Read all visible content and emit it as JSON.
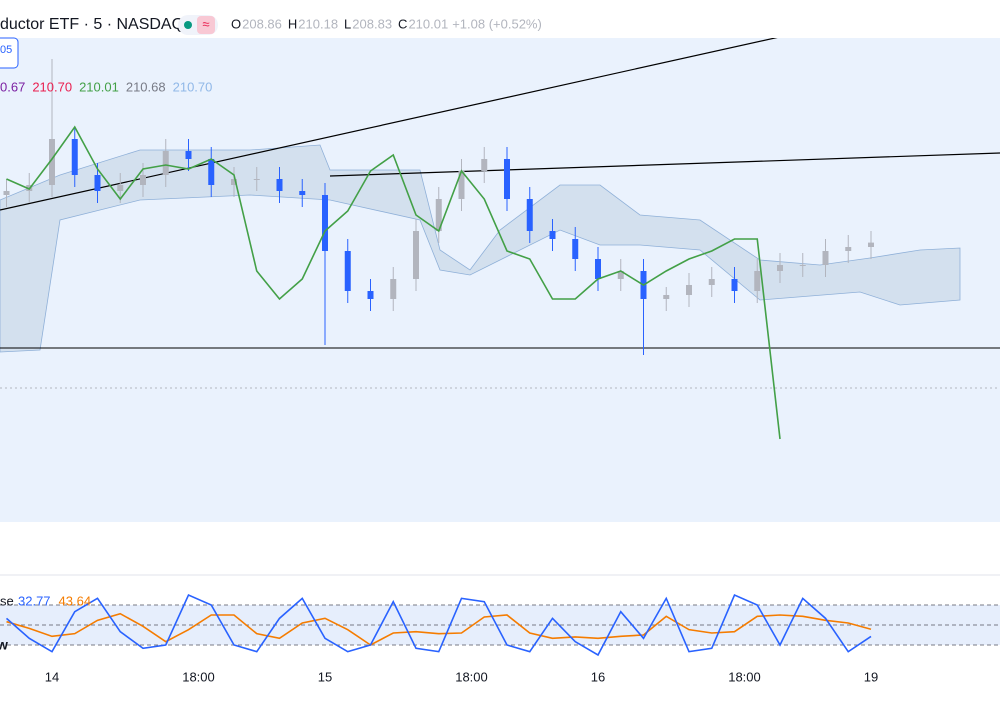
{
  "chart_data": [
    {
      "type": "candlestick",
      "title": "ductor ETF · 5 · NASDAQ",
      "legend": [
        {
          "label": "O",
          "value": "208.86"
        },
        {
          "label": "H",
          "value": "210.18"
        },
        {
          "label": "L",
          "value": "208.83"
        },
        {
          "label": "C",
          "value": "210.01"
        }
      ],
      "change": "+1.08 (+0.52%)",
      "badge": "05",
      "indicator_values": [
        {
          "text": "0.67",
          "color": "#7b1fa2"
        },
        {
          "text": "210.70",
          "color": "#e91e4f"
        },
        {
          "text": "210.01",
          "color": "#43a047"
        },
        {
          "text": "210.68",
          "color": "#787b86"
        },
        {
          "text": "210.70",
          "color": "#90b8e8"
        }
      ],
      "categories": [
        null,
        null,
        "14",
        null,
        null,
        null,
        null,
        null,
        "18:00",
        null,
        null,
        null,
        null,
        null,
        "15",
        null,
        null,
        null,
        null,
        null,
        "18:00",
        null,
        null,
        null,
        null,
        null,
        "16",
        null,
        null,
        null,
        null,
        null,
        "18:00",
        null,
        null,
        null,
        null,
        null,
        "19"
      ],
      "open": [
        211.2,
        211.3,
        211.45,
        212.6,
        211.7,
        211.3,
        211.45,
        211.7,
        212.3,
        212.1,
        211.45,
        211.6,
        211.6,
        211.3,
        211.2,
        209.8,
        208.8,
        208.6,
        209.1,
        210.3,
        211.1,
        211.8,
        212.1,
        211.1,
        210.3,
        210.1,
        209.6,
        209.1,
        209.3,
        208.6,
        208.7,
        208.95,
        209.1,
        208.8,
        209.3,
        209.45,
        209.45,
        209.8,
        209.9
      ],
      "high": [
        211.6,
        211.75,
        214.6,
        212.9,
        212.0,
        211.75,
        212.0,
        212.6,
        212.6,
        212.4,
        211.9,
        211.9,
        211.9,
        211.6,
        211.5,
        210.1,
        209.1,
        209.4,
        210.6,
        211.4,
        212.1,
        212.4,
        212.4,
        211.4,
        210.6,
        210.4,
        209.9,
        209.6,
        209.6,
        208.9,
        209.25,
        209.4,
        209.4,
        209.6,
        209.75,
        209.75,
        210.1,
        210.2,
        210.3
      ],
      "low": [
        210.9,
        211.0,
        211.15,
        211.4,
        211.0,
        211.0,
        211.15,
        211.4,
        211.8,
        211.15,
        211.15,
        211.3,
        211.0,
        210.9,
        207.45,
        208.5,
        208.3,
        208.3,
        208.8,
        210.0,
        210.8,
        211.5,
        210.8,
        210.0,
        209.8,
        209.3,
        208.8,
        208.8,
        207.2,
        208.3,
        208.4,
        208.65,
        208.5,
        208.5,
        209.0,
        209.15,
        209.15,
        209.5,
        209.6
      ],
      "close": [
        211.3,
        211.45,
        212.6,
        211.7,
        211.3,
        211.45,
        211.7,
        212.3,
        212.1,
        211.45,
        211.6,
        211.6,
        211.3,
        211.2,
        209.8,
        208.8,
        208.6,
        209.1,
        210.3,
        211.1,
        211.8,
        212.1,
        211.1,
        210.3,
        210.1,
        209.6,
        209.1,
        209.3,
        208.6,
        208.7,
        208.95,
        209.1,
        208.8,
        209.3,
        209.45,
        209.45,
        209.8,
        209.9,
        210.01
      ],
      "up_color": "#b2b5be",
      "down_color": "#2962ff",
      "series": [
        {
          "color": "#43a047",
          "values": [
            211.6,
            211.35,
            212.1,
            212.9,
            211.85,
            211.1,
            211.85,
            211.95,
            211.85,
            212.1,
            211.7,
            209.3,
            208.6,
            209.1,
            210.3,
            210.8,
            211.8,
            212.2,
            210.7,
            210.3,
            211.8,
            211.1,
            209.8,
            209.6,
            208.6,
            208.6,
            209.1,
            209.3,
            208.95,
            209.3,
            209.6,
            209.8,
            210.1,
            210.1,
            205.1,
            null,
            null,
            null,
            null
          ]
        }
      ],
      "ylim": [
        203.5,
        215.5
      ]
    },
    {
      "type": "stochastic",
      "label": "se",
      "side_label": "w",
      "series": [
        {
          "name": "32.77",
          "color": "#2962ff",
          "values": [
            60,
            30,
            10,
            70,
            90,
            40,
            15,
            20,
            95,
            80,
            20,
            10,
            60,
            90,
            30,
            10,
            20,
            85,
            15,
            10,
            90,
            85,
            20,
            10,
            60,
            25,
            5,
            70,
            30,
            90,
            10,
            15,
            95,
            80,
            20,
            90,
            60,
            10,
            32.77
          ]
        },
        {
          "name": "43.64",
          "color": "#f57c00",
          "values": [
            55,
            45,
            33,
            37,
            57,
            67,
            48,
            25,
            43,
            65,
            65,
            37,
            30,
            53,
            60,
            43,
            20,
            38,
            40,
            37,
            38,
            62,
            65,
            38,
            30,
            32,
            30,
            33,
            35,
            63,
            43,
            38,
            40,
            63,
            65,
            63,
            57,
            53,
            43.64
          ]
        }
      ],
      "bands": [
        20,
        50,
        80
      ],
      "ylim": [
        0,
        100
      ]
    }
  ]
}
